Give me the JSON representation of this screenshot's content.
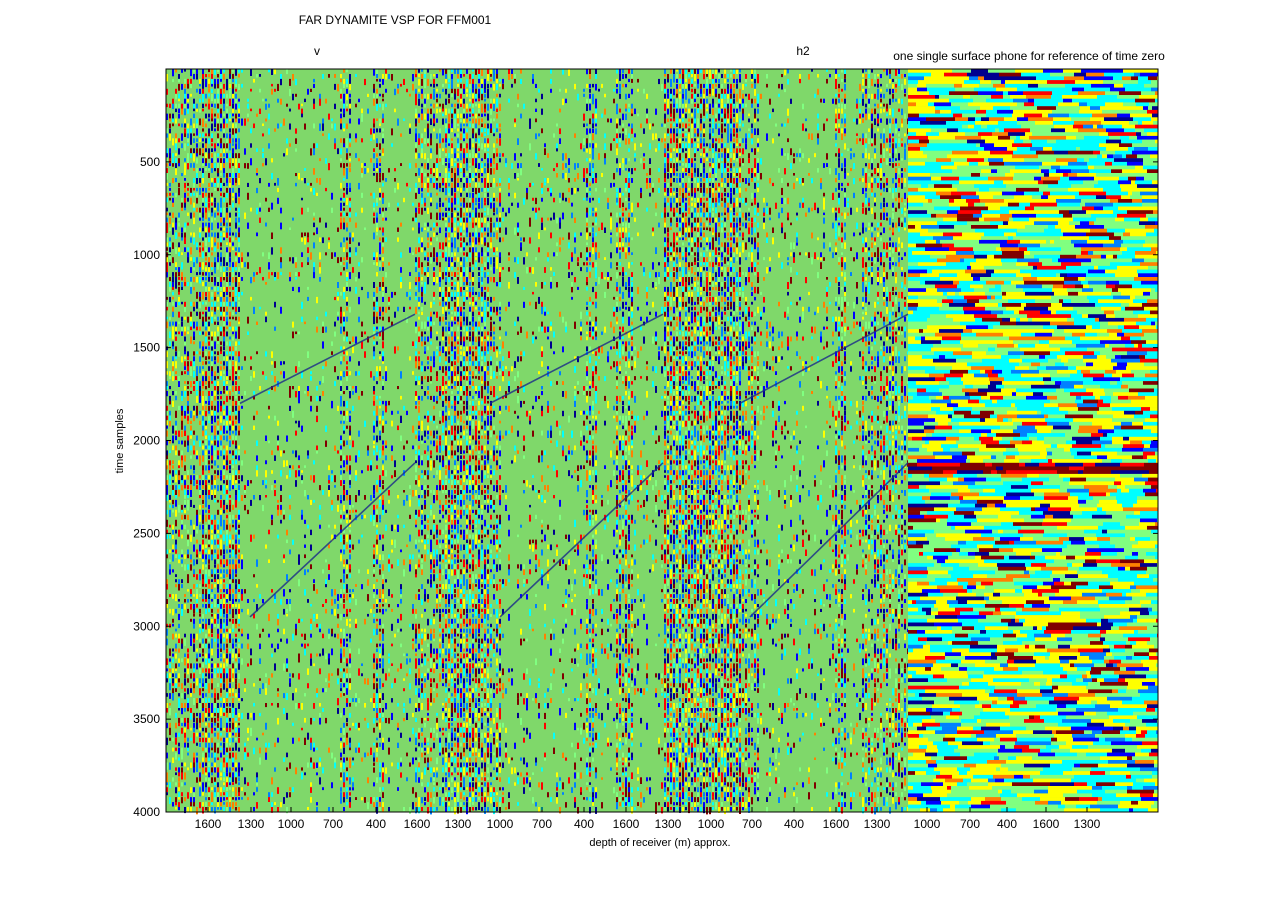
{
  "chart_data": {
    "type": "heatmap",
    "title": "FAR DYNAMITE VSP FOR FFM001",
    "xlabel": "depth of receiver (m) approx.",
    "ylabel": "time samples",
    "ylim": [
      0,
      4000
    ],
    "y_reversed": true,
    "y_ticks": [
      500,
      1000,
      1500,
      2000,
      2500,
      3000,
      3500,
      4000
    ],
    "x_tick_labels": [
      "1600",
      "1300",
      "1000",
      "700",
      "400",
      "1600",
      "1300",
      "1000",
      "700",
      "400",
      "1600",
      "1300",
      "1000",
      "700",
      "400",
      "1600",
      "1300",
      "1000",
      "700",
      "400",
      "1600",
      "1300"
    ],
    "annotations": [
      {
        "text": "v"
      },
      {
        "text": "h2"
      },
      {
        "text": "one single surface phone for reference of time zero"
      }
    ],
    "colormap": [
      "#00008f",
      "#0000ff",
      "#0080ff",
      "#00ffff",
      "#80ff80",
      "#ffff00",
      "#ff8000",
      "#ff0000",
      "#800000"
    ],
    "background_value_color": "#7fd86a",
    "features": {
      "direct_arrival_upper": [
        {
          "depth_label": "1000",
          "time": 1800
        },
        {
          "depth_label": "1600",
          "time": 1320
        }
      ],
      "direct_arrival_lower": [
        {
          "depth_label": "1000",
          "time": 2950
        },
        {
          "depth_label": "1300",
          "time": 2120
        }
      ],
      "reference_burst_time": 2130
    }
  }
}
